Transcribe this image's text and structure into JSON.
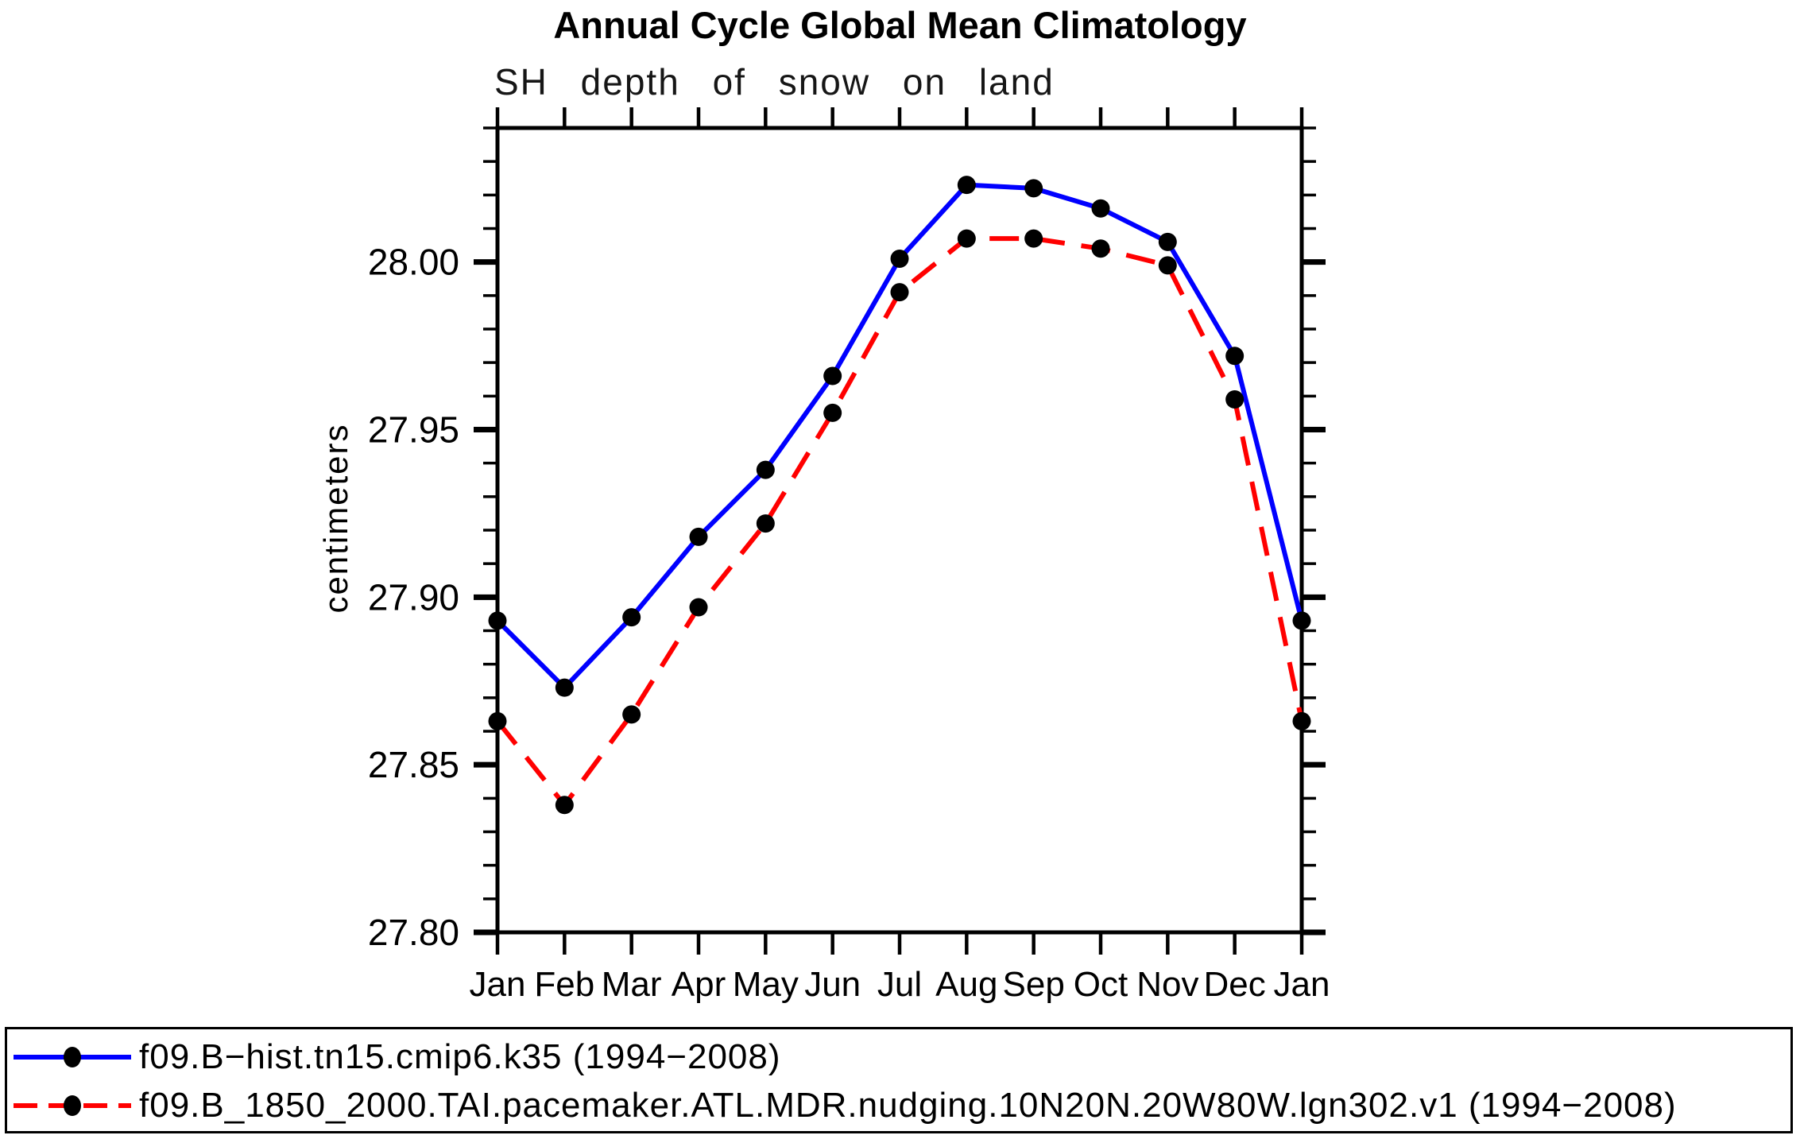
{
  "chart_data": {
    "type": "line",
    "title": "Annual Cycle Global Mean Climatology",
    "subtitle": "SH depth of snow on land",
    "ylabel": "centimeters",
    "x_categories": [
      "Jan",
      "Feb",
      "Mar",
      "Apr",
      "May",
      "Jun",
      "Jul",
      "Aug",
      "Sep",
      "Oct",
      "Nov",
      "Dec",
      "Jan"
    ],
    "ylim": [
      27.8,
      28.04
    ],
    "yticks_major": {
      "values": [
        27.8,
        27.85,
        27.9,
        27.95,
        28.0
      ],
      "labels": [
        "27.80",
        "27.85",
        "27.90",
        "27.95",
        "28.00"
      ]
    },
    "ytick_minor_step": 0.01,
    "grid": false,
    "legend_position": "bottom-outside",
    "axis_color": "#000000",
    "marker_color": "#000000",
    "series": [
      {
        "name": "f09.B−hist.tn15.cmip6.k35 (1994−2008)",
        "color": "#0000ff",
        "line_style": "solid",
        "values": [
          27.893,
          27.873,
          27.894,
          27.918,
          27.938,
          27.966,
          28.001,
          28.023,
          28.022,
          28.016,
          28.006,
          27.972,
          27.893
        ]
      },
      {
        "name": "f09.B_1850_2000.TAI.pacemaker.ATL.MDR.nudging.10N20N.20W80W.lgn302.v1 (1994−2008)",
        "color": "#ff0000",
        "line_style": "dashed",
        "values": [
          27.863,
          27.838,
          27.865,
          27.897,
          27.922,
          27.955,
          27.991,
          28.007,
          28.007,
          28.004,
          27.999,
          27.959,
          27.863
        ]
      }
    ]
  }
}
